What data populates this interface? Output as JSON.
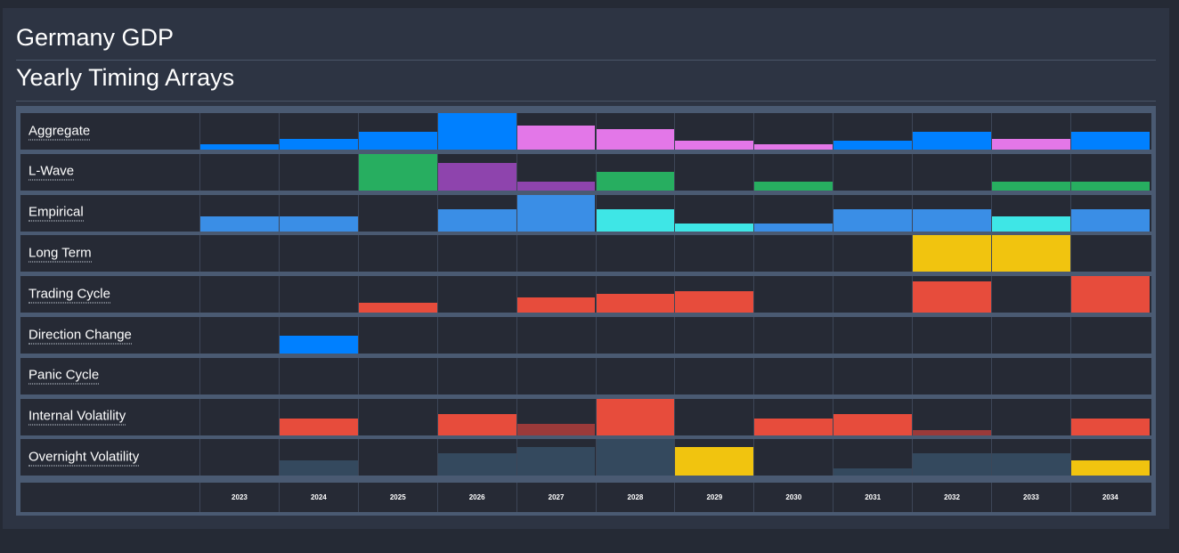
{
  "header": {
    "title": "Germany GDP",
    "subtitle": "Yearly Timing Arrays"
  },
  "colors": {
    "blue": "#0080ff",
    "pink": "#e377e8",
    "green": "#27ae60",
    "purple": "#8e44ad",
    "empirical_blue": "#3a8ee6",
    "cyan": "#3ee6e6",
    "yellow": "#f1c40f",
    "red": "#e74c3c",
    "dark_red": "#9b3a3a",
    "slate": "#34495e"
  },
  "chart_data": {
    "type": "heatmap",
    "title": "Yearly Timing Arrays",
    "x": [
      "2023",
      "2024",
      "2025",
      "2026",
      "2027",
      "2028",
      "2029",
      "2030",
      "2031",
      "2032",
      "2033",
      "2034"
    ],
    "value_range": [
      0,
      1
    ],
    "grid": true,
    "series": [
      {
        "name": "Aggregate",
        "values": [
          0.15,
          0.3,
          0.48,
          1.0,
          0.65,
          0.55,
          0.25,
          0.15,
          0.25,
          0.48,
          0.3,
          0.48
        ],
        "colors": [
          "blue",
          "blue",
          "blue",
          "blue",
          "pink",
          "pink",
          "pink",
          "pink",
          "blue",
          "blue",
          "pink",
          "blue"
        ]
      },
      {
        "name": "L-Wave",
        "values": [
          0,
          0,
          1.0,
          0.75,
          0.25,
          0.5,
          0,
          0.25,
          0,
          0,
          0.25,
          0.25
        ],
        "colors": [
          "green",
          "green",
          "green",
          "purple",
          "purple",
          "green",
          "green",
          "green",
          "green",
          "green",
          "green",
          "green"
        ]
      },
      {
        "name": "Empirical",
        "values": [
          0.4,
          0.4,
          0,
          0.6,
          1.0,
          0.6,
          0.2,
          0.2,
          0.6,
          0.6,
          0.4,
          0.6
        ],
        "colors": [
          "empirical_blue",
          "empirical_blue",
          "empirical_blue",
          "empirical_blue",
          "empirical_blue",
          "cyan",
          "cyan",
          "empirical_blue",
          "empirical_blue",
          "empirical_blue",
          "cyan",
          "empirical_blue"
        ]
      },
      {
        "name": "Long Term",
        "values": [
          0,
          0,
          0,
          0,
          0,
          0,
          0,
          0,
          0,
          1.0,
          1.0,
          0
        ],
        "colors": [
          "yellow",
          "yellow",
          "yellow",
          "yellow",
          "yellow",
          "yellow",
          "yellow",
          "yellow",
          "yellow",
          "yellow",
          "yellow",
          "yellow"
        ]
      },
      {
        "name": "Trading Cycle",
        "values": [
          0,
          0,
          0.27,
          0,
          0.42,
          0.52,
          0.6,
          0,
          0,
          0.85,
          0,
          1.0
        ],
        "colors": [
          "red",
          "red",
          "red",
          "red",
          "red",
          "red",
          "red",
          "red",
          "red",
          "red",
          "red",
          "red"
        ]
      },
      {
        "name": "Direction Change",
        "values": [
          0,
          0.5,
          0,
          0,
          0,
          0,
          0,
          0,
          0,
          0,
          0,
          0
        ],
        "colors": [
          "blue",
          "blue",
          "blue",
          "blue",
          "blue",
          "blue",
          "blue",
          "blue",
          "blue",
          "blue",
          "blue",
          "blue"
        ]
      },
      {
        "name": "Panic Cycle",
        "values": [
          0,
          0,
          0,
          0,
          0,
          0,
          0,
          0,
          0,
          0,
          0,
          0
        ],
        "colors": [
          "red",
          "red",
          "red",
          "red",
          "red",
          "red",
          "red",
          "red",
          "red",
          "red",
          "red",
          "red"
        ]
      },
      {
        "name": "Internal Volatility",
        "values": [
          0,
          0.45,
          0,
          0.57,
          0.3,
          1.0,
          0,
          0.45,
          0.57,
          0.15,
          0,
          0.45
        ],
        "colors": [
          "red",
          "red",
          "red",
          "red",
          "dark_red",
          "red",
          "red",
          "red",
          "red",
          "dark_red",
          "red",
          "red"
        ]
      },
      {
        "name": "Overnight Volatility",
        "values": [
          0,
          0.42,
          0,
          0.62,
          0.8,
          1.0,
          0.8,
          0,
          0.2,
          0.62,
          0.62,
          0.42
        ],
        "colors": [
          "slate",
          "slate",
          "slate",
          "slate",
          "slate",
          "slate",
          "yellow",
          "slate",
          "slate",
          "slate",
          "slate",
          "yellow"
        ]
      }
    ]
  }
}
